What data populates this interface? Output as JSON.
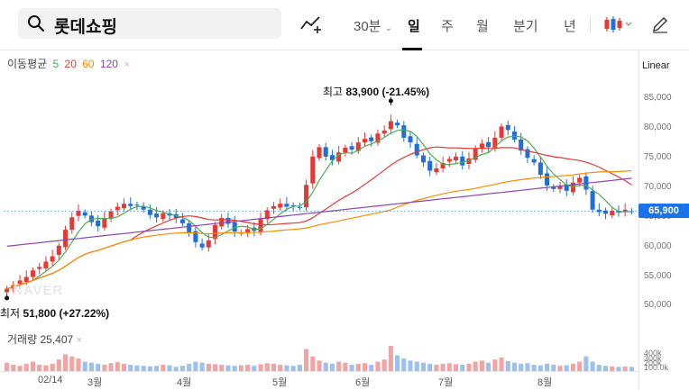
{
  "header": {
    "search_text": "롯데쇼핑",
    "period_select": "30분",
    "tabs": [
      {
        "label": "일",
        "active": true
      },
      {
        "label": "주",
        "active": false
      },
      {
        "label": "월",
        "active": false
      },
      {
        "label": "분기",
        "active": false
      },
      {
        "label": "년",
        "active": false
      }
    ]
  },
  "legend": {
    "title": "이동평균",
    "ma5": "5",
    "ma20": "20",
    "ma60": "60",
    "ma120": "120",
    "close": "×",
    "colors": {
      "ma5": "#4caf50",
      "ma20": "#e53935",
      "ma60": "#fb8c00",
      "ma120": "#8e44ad"
    }
  },
  "scale_label": "Linear",
  "price_axis": [
    "85,000",
    "80,000",
    "75,000",
    "70,000",
    "65,000",
    "60,000",
    "55,000",
    "50,000"
  ],
  "current_price": "65,900",
  "annotations": {
    "high_label": "최고",
    "high_value": "83,900 (-21.45%)",
    "low_label": "최저",
    "low_value": "51,800 (+27.22%)"
  },
  "watermark": "NAVER",
  "volume": {
    "label": "거래량",
    "value": "25,407",
    "close": "×",
    "axis": [
      "400k",
      "300k",
      "200k",
      "100.0k"
    ]
  },
  "x_axis": [
    "02/14",
    "3월",
    "4월",
    "5월",
    "6월",
    "7월",
    "8월"
  ],
  "chart_data": {
    "type": "candlestick",
    "up_color": "#e53935",
    "down_color": "#1e6fd9",
    "ylim": [
      48000,
      88000
    ],
    "high": 83900,
    "low": 51800,
    "closes": [
      52800,
      53400,
      54200,
      54800,
      55900,
      56500,
      57400,
      58300,
      60100,
      62800,
      64900,
      66000,
      65200,
      64100,
      63400,
      64800,
      65900,
      66700,
      67200,
      66800,
      67000,
      66200,
      65300,
      64900,
      65600,
      65200,
      64800,
      63900,
      62300,
      60700,
      59800,
      61000,
      63600,
      64800,
      63800,
      62500,
      62300,
      62900,
      62600,
      64600,
      66100,
      66800,
      67200,
      66700,
      66900,
      66600,
      70400,
      75200,
      76800,
      75200,
      74600,
      75900,
      76700,
      76400,
      77600,
      78200,
      77800,
      79100,
      79600,
      81200,
      80500,
      78400,
      77600,
      75400,
      74200,
      72800,
      73200,
      74100,
      74800,
      75200,
      73700,
      74900,
      76600,
      77400,
      76800,
      78400,
      80300,
      79700,
      78100,
      76200,
      75000,
      74200,
      72100,
      70300,
      69700,
      70200,
      69400,
      70800,
      71600,
      69600,
      66200,
      65800,
      65500,
      66000,
      65700,
      66200,
      65900
    ],
    "volume": [
      80,
      60,
      50,
      70,
      90,
      60,
      55,
      70,
      110,
      160,
      140,
      120,
      90,
      80,
      70,
      60,
      75,
      85,
      70,
      60,
      55,
      50,
      45,
      50,
      60,
      55,
      40,
      50,
      70,
      90,
      80,
      70,
      65,
      60,
      55,
      50,
      55,
      60,
      50,
      65,
      75,
      70,
      60,
      55,
      50,
      60,
      210,
      140,
      100,
      80,
      70,
      90,
      80,
      60,
      70,
      75,
      60,
      90,
      110,
      240,
      150,
      120,
      100,
      90,
      80,
      70,
      60,
      70,
      75,
      65,
      60,
      70,
      90,
      100,
      80,
      110,
      130,
      95,
      80,
      70,
      75,
      60,
      55,
      70,
      60,
      50,
      55,
      70,
      90,
      140,
      90,
      60,
      50,
      45,
      40,
      45,
      40
    ]
  }
}
